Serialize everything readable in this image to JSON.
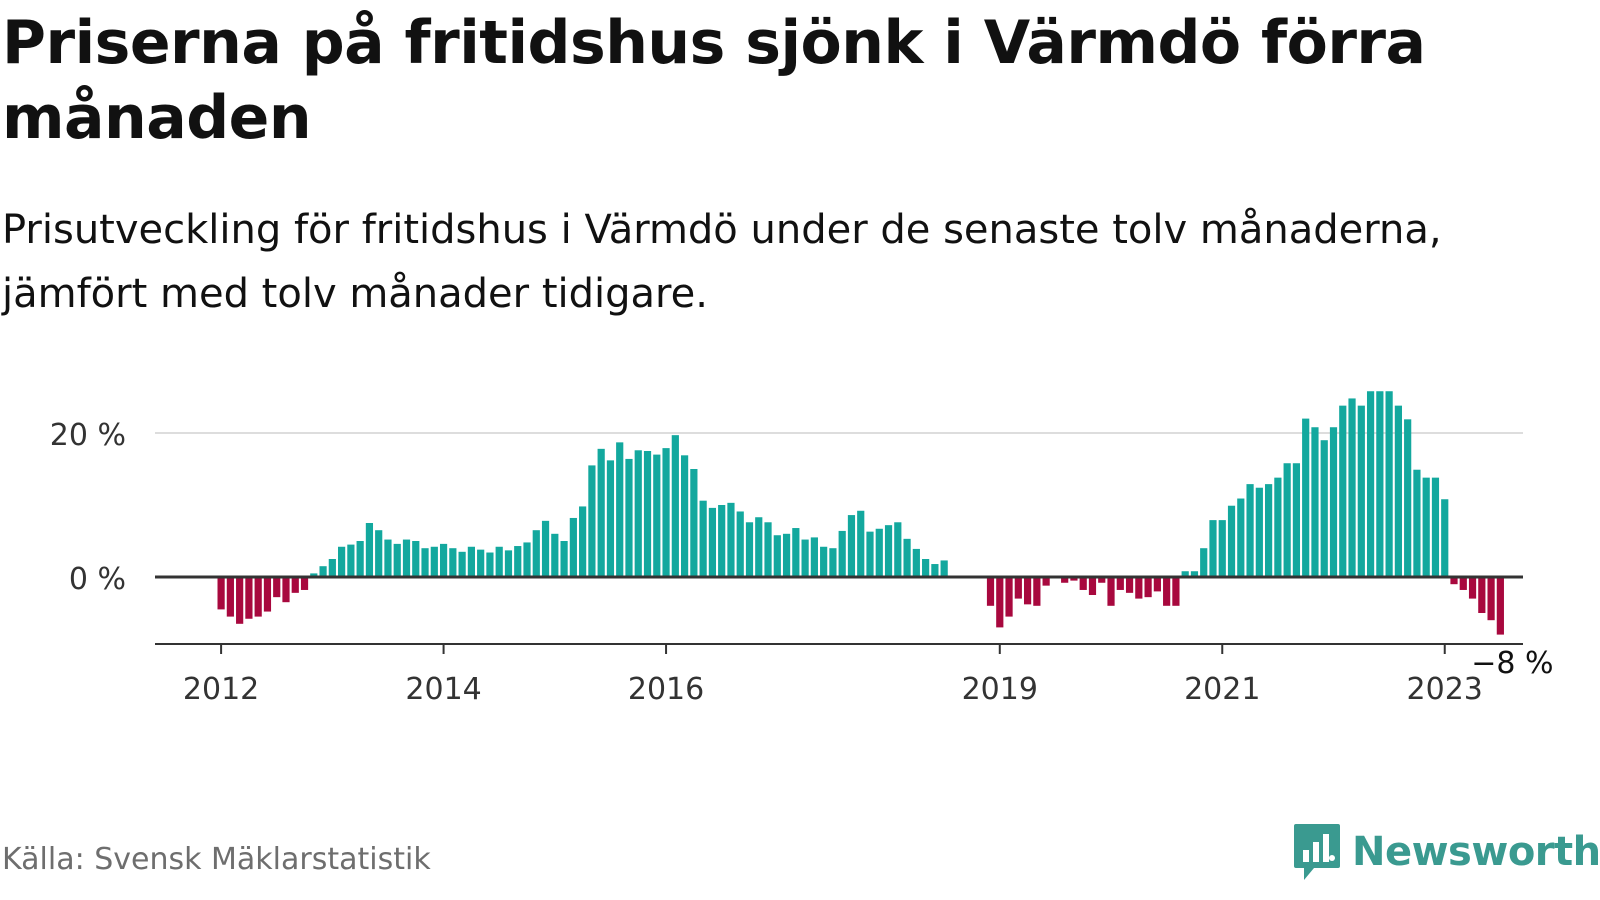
{
  "title": "Priserna på fritidshus sjönk i Värmdö förra månaden",
  "subtitle": "Prisutveckling för fritidshus i Värmdö under de senaste tolv månaderna, jämfört med tolv månader tidigare.",
  "source": "Källa: Svensk Mäklarstatistik",
  "brand": {
    "name": "Newsworthy",
    "icon": "newsworthy-logo-icon",
    "color": "#3a9a90"
  },
  "colors": {
    "positive": "#13a89e",
    "negative": "#a8083e",
    "baseline": "#333333",
    "grid": "#dddddd"
  },
  "chart_data": {
    "type": "bar",
    "title": "Priserna på fritidshus sjönk i Värmdö förra månaden",
    "xlabel": "",
    "ylabel": "",
    "ylim": [
      -9,
      27
    ],
    "grid": "horizontal",
    "y_ticks": [
      {
        "value": 0,
        "label": "0 %"
      },
      {
        "value": 20,
        "label": "20 %"
      }
    ],
    "x_ticks": [
      {
        "index": 0,
        "label": "2012"
      },
      {
        "index": 24,
        "label": "2014"
      },
      {
        "index": 48,
        "label": "2016"
      },
      {
        "index": 84,
        "label": "2019"
      },
      {
        "index": 108,
        "label": "2021"
      },
      {
        "index": 132,
        "label": "2023"
      }
    ],
    "last_value_label": "−8 %",
    "start": "2012-01",
    "frequency": "monthly",
    "values": [
      -4.5,
      -5.5,
      -6.5,
      -5.8,
      -5.5,
      -4.8,
      -2.8,
      -3.5,
      -2.2,
      -1.8,
      0.5,
      1.5,
      2.5,
      4.2,
      4.5,
      5.0,
      7.5,
      6.5,
      5.2,
      4.6,
      5.2,
      5.0,
      4.0,
      4.2,
      4.6,
      4.0,
      3.5,
      4.2,
      3.8,
      3.4,
      4.2,
      3.7,
      4.3,
      4.8,
      6.5,
      7.8,
      6.0,
      5.0,
      8.2,
      9.8,
      15.5,
      17.8,
      16.2,
      18.7,
      16.4,
      17.6,
      17.5,
      17.0,
      17.9,
      19.7,
      16.9,
      15.0,
      10.6,
      9.6,
      10.0,
      10.3,
      9.1,
      7.6,
      8.3,
      7.6,
      5.8,
      6.0,
      6.8,
      5.2,
      5.5,
      4.2,
      4.0,
      6.4,
      8.6,
      9.2,
      6.3,
      6.7,
      7.2,
      7.6,
      5.3,
      3.9,
      2.5,
      1.8,
      2.3,
      0,
      0,
      0,
      0,
      -4.0,
      -7.0,
      -5.5,
      -3.0,
      -3.8,
      -4.0,
      -1.2,
      0,
      -0.8,
      -0.5,
      -1.8,
      -2.5,
      -0.8,
      -4.0,
      -1.8,
      -2.2,
      -3.0,
      -2.8,
      -2.0,
      -4.0,
      -4.0,
      0.8,
      0.8,
      4.0,
      7.9,
      7.9,
      9.9,
      10.9,
      12.9,
      12.4,
      12.9,
      13.8,
      15.8,
      15.8,
      22.0,
      20.8,
      19.0,
      20.8,
      23.8,
      24.8,
      23.8,
      25.8,
      25.8,
      25.8,
      23.8,
      21.9,
      14.9,
      13.8,
      13.8,
      10.8,
      -1.0,
      -1.8,
      -3.0,
      -5.0,
      -6.0,
      -8.0
    ]
  }
}
